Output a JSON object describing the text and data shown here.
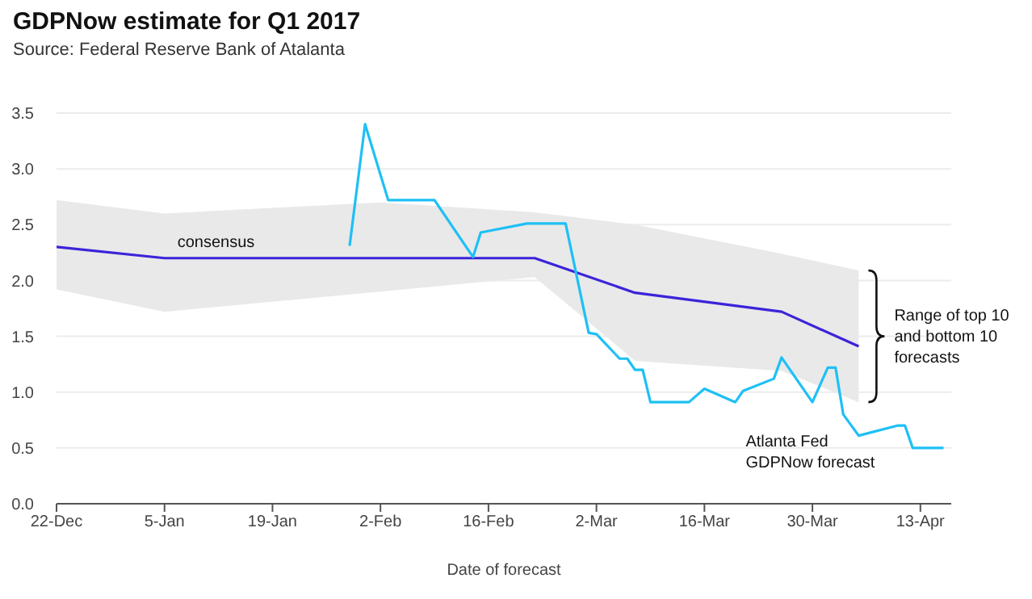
{
  "chart_data": {
    "type": "line",
    "title": "GDPNow estimate for Q1 2017",
    "subtitle": "Source: Federal Reserve Bank of Atalanta",
    "xlabel": "Date of forecast",
    "xlim": [
      "2016-12-22",
      "2017-04-17"
    ],
    "xticks": [
      {
        "value": "2016-12-22",
        "label": "22-Dec"
      },
      {
        "value": "2017-01-05",
        "label": "5-Jan"
      },
      {
        "value": "2017-01-19",
        "label": "19-Jan"
      },
      {
        "value": "2017-02-02",
        "label": "2-Feb"
      },
      {
        "value": "2017-02-16",
        "label": "16-Feb"
      },
      {
        "value": "2017-03-02",
        "label": "2-Mar"
      },
      {
        "value": "2017-03-16",
        "label": "16-Mar"
      },
      {
        "value": "2017-03-30",
        "label": "30-Mar"
      },
      {
        "value": "2017-04-13",
        "label": "13-Apr"
      }
    ],
    "ylim": [
      0,
      3.5
    ],
    "yticks": [
      {
        "value": 0,
        "label": "0.0"
      },
      {
        "value": 0.5,
        "label": "0.5"
      },
      {
        "value": 1,
        "label": "1.0"
      },
      {
        "value": 1.5,
        "label": "1.5"
      },
      {
        "value": 2,
        "label": "2.0"
      },
      {
        "value": 2.5,
        "label": "2.5"
      },
      {
        "value": 3,
        "label": "3.0"
      },
      {
        "value": 3.5,
        "label": "3.5"
      }
    ],
    "grid": "y",
    "series": [
      {
        "name": "consensus",
        "color": "#3b24d9",
        "x": [
          "2016-12-22",
          "2017-01-05",
          "2017-02-02",
          "2017-02-22",
          "2017-03-07",
          "2017-03-26",
          "2017-04-05"
        ],
        "values": [
          2.3,
          2.2,
          2.2,
          2.2,
          1.89,
          1.72,
          1.41
        ],
        "upper": [
          2.72,
          2.6,
          2.7,
          2.61,
          2.5,
          2.24,
          2.09
        ],
        "lower": [
          1.92,
          1.72,
          1.9,
          2.03,
          1.28,
          1.19,
          0.91
        ]
      },
      {
        "name": "Atlanta Fed GDPNow forecast",
        "color": "#1ec0f5",
        "x": [
          "2017-01-29",
          "2017-01-31",
          "2017-02-03",
          "2017-02-09",
          "2017-02-14",
          "2017-02-15",
          "2017-02-21",
          "2017-02-26",
          "2017-03-01",
          "2017-03-02",
          "2017-03-05",
          "2017-03-06",
          "2017-03-07",
          "2017-03-08",
          "2017-03-09",
          "2017-03-14",
          "2017-03-16",
          "2017-03-20",
          "2017-03-21",
          "2017-03-25",
          "2017-03-26",
          "2017-03-30",
          "2017-04-01",
          "2017-04-02",
          "2017-04-03",
          "2017-04-05",
          "2017-04-10",
          "2017-04-11",
          "2017-04-12",
          "2017-04-16"
        ],
        "values": [
          2.31,
          3.4,
          2.72,
          2.72,
          2.21,
          2.43,
          2.51,
          2.51,
          1.53,
          1.52,
          1.3,
          1.3,
          1.2,
          1.2,
          0.91,
          0.91,
          1.03,
          0.91,
          1.01,
          1.12,
          1.31,
          0.91,
          1.22,
          1.22,
          0.8,
          0.61,
          0.7,
          0.7,
          0.5,
          0.5
        ]
      }
    ],
    "annotations": [
      "Range of top 10 and bottom 10 forecasts"
    ]
  }
}
